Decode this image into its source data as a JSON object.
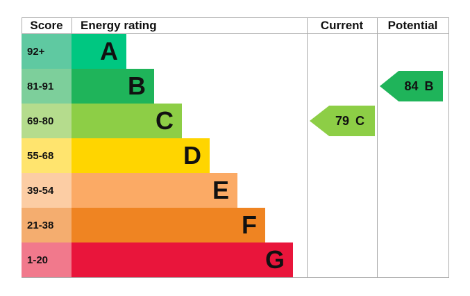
{
  "header": {
    "score": "Score",
    "energy_rating": "Energy rating",
    "current": "Current",
    "potential": "Potential"
  },
  "bands": [
    {
      "letter": "A",
      "score_range": "92+",
      "color": "#00c781",
      "score_color": "#5fc9a1"
    },
    {
      "letter": "B",
      "score_range": "81-91",
      "color": "#1fb45a",
      "score_color": "#7dcf9b"
    },
    {
      "letter": "C",
      "score_range": "69-80",
      "color": "#8dce46",
      "score_color": "#b5dc8d"
    },
    {
      "letter": "D",
      "score_range": "55-68",
      "color": "#ffd500",
      "score_color": "#ffe46e"
    },
    {
      "letter": "E",
      "score_range": "39-54",
      "color": "#fbaa65",
      "score_color": "#fccda4"
    },
    {
      "letter": "F",
      "score_range": "21-38",
      "color": "#ef8422",
      "score_color": "#f4ad6f"
    },
    {
      "letter": "G",
      "score_range": "1-20",
      "color": "#e9153b",
      "score_color": "#f1798c"
    }
  ],
  "current": {
    "value": "79",
    "letter": "C",
    "band_index": 2
  },
  "potential": {
    "value": "84",
    "letter": "B",
    "band_index": 1
  },
  "border_color": "#ababab",
  "chart_data": {
    "type": "bar",
    "orientation": "horizontal",
    "title": "Energy rating",
    "column_headers": [
      "Score",
      "Energy rating",
      "Current",
      "Potential"
    ],
    "categories": [
      "A",
      "B",
      "C",
      "D",
      "E",
      "F",
      "G"
    ],
    "score_ranges": [
      "92+",
      "81-91",
      "69-80",
      "55-68",
      "39-54",
      "21-38",
      "1-20"
    ],
    "band_colors": [
      "#00c781",
      "#1fb45a",
      "#8dce46",
      "#ffd500",
      "#fbaa65",
      "#ef8422",
      "#e9153b"
    ],
    "bar_length_steps": [
      1,
      2,
      3,
      4,
      5,
      6,
      7
    ],
    "markers": [
      {
        "column": "Current",
        "score": 79,
        "rating": "C"
      },
      {
        "column": "Potential",
        "score": 84,
        "rating": "B"
      }
    ],
    "legend_position": "none",
    "grid": false
  }
}
